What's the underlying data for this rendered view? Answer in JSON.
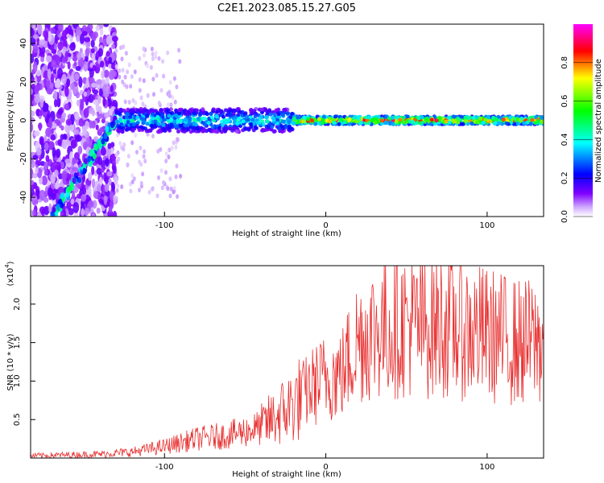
{
  "title": "C2E1.2023.085.15.27.G05",
  "chart_data": [
    {
      "type": "heatmap",
      "xlabel": "Height of straight line (km)",
      "ylabel": "Frequency (Hz)",
      "xlim": [
        -183,
        135
      ],
      "ylim": [
        -50,
        50
      ],
      "x_ticks": [
        -100,
        0,
        100
      ],
      "y_ticks": [
        -40,
        -20,
        0,
        20,
        40
      ],
      "colorbar": {
        "label": "Normalized spectral amplitude",
        "range": [
          0.0,
          1.0
        ],
        "ticks": [
          "0.0",
          "0.2",
          "0.4",
          "0.6",
          "0.8"
        ],
        "colormap": [
          "#ffffff",
          "#7f00ff",
          "#0000ff",
          "#00ffff",
          "#00ff00",
          "#ffff00",
          "#ff0000",
          "#ff00ff"
        ]
      },
      "features": [
        {
          "segment": "noise",
          "x_range": [
            -183,
            -130
          ],
          "freq_range": [
            -50,
            50
          ],
          "amplitude": 0.1
        },
        {
          "segment": "diagonal streak",
          "x_range": [
            -170,
            -130
          ],
          "freq_range": [
            -50,
            0
          ],
          "amplitude": 0.35
        },
        {
          "segment": "wide band",
          "x_range": [
            -130,
            -20
          ],
          "center_hz": 0,
          "halfwidth_hz": 6,
          "amplitude": 0.45
        },
        {
          "segment": "narrow band",
          "x_range": [
            -20,
            135
          ],
          "center_hz": 0,
          "halfwidth_hz": 2,
          "amplitude": 0.9
        }
      ]
    },
    {
      "type": "line",
      "xlabel": "Height of straight line (km)",
      "ylabel": "SNR (10 * v/v)",
      "y_multiplier": "(x10",
      "y_multiplier_exp": "4",
      "y_multiplier_close": ")",
      "xlim": [
        -183,
        135
      ],
      "ylim": [
        0.0,
        2.5
      ],
      "x_ticks": [
        -100,
        0,
        100
      ],
      "y_ticks": [
        "0.5",
        "1.0",
        "1.5",
        "2.0"
      ],
      "color": "#e83030",
      "series": [
        {
          "x": [
            -183,
            -160,
            -140,
            -120,
            -100,
            -80,
            -60,
            -40,
            -30,
            -20,
            -10,
            0,
            10,
            20,
            30,
            40,
            50,
            60,
            70,
            80,
            90,
            100,
            110,
            120,
            135
          ],
          "y": [
            0.03,
            0.04,
            0.05,
            0.08,
            0.15,
            0.25,
            0.3,
            0.4,
            0.55,
            0.7,
            0.9,
            1.05,
            1.1,
            1.55,
            1.65,
            1.7,
            1.75,
            1.7,
            1.75,
            1.7,
            1.65,
            1.6,
            1.55,
            1.5,
            1.5
          ]
        }
      ]
    }
  ]
}
